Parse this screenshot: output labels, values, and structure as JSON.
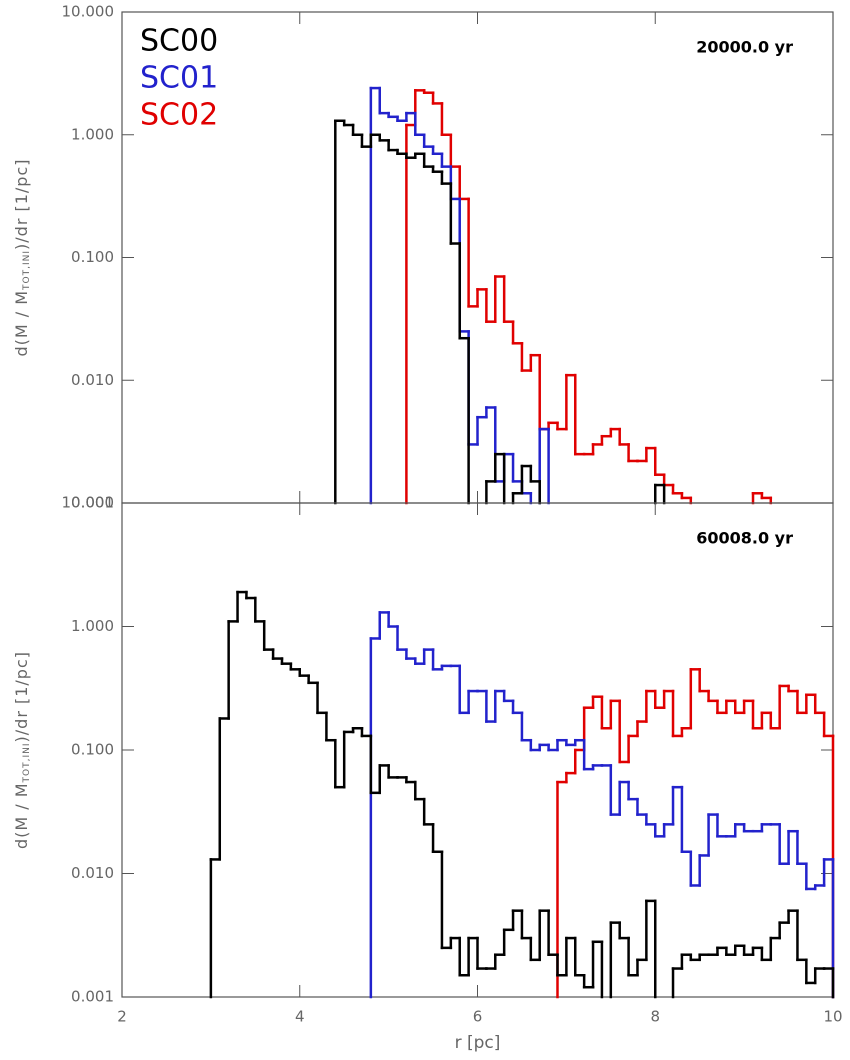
{
  "chart_data": [
    {
      "type": "histogram",
      "log_y": true,
      "legend": "upper left",
      "show_xtick_labels": false,
      "annotation": "20000.0 yr",
      "ylabel": "d(M / M",
      "ylabel_sub": "TOT,INI",
      "ylabel_end": ")/dr [1/pc]",
      "xlim": [
        2,
        10
      ],
      "xticks": [
        2,
        4,
        6,
        8,
        10
      ],
      "ylim": [
        0.001,
        10
      ],
      "yticks": [
        {
          "value": 10,
          "label": "10.000"
        },
        {
          "value": 1,
          "label": "1.000"
        },
        {
          "value": 0.1,
          "label": "0.100"
        },
        {
          "value": 0.01,
          "label": "0.010"
        },
        {
          "value": 0.001,
          "label": "0.001"
        }
      ],
      "series": [
        {
          "name": "SC00",
          "color": "#000000",
          "bins": [
            4.4,
            4.5,
            4.6,
            4.7,
            4.8,
            4.9,
            5.0,
            5.1,
            5.2,
            5.3,
            5.4,
            5.5,
            5.6,
            5.7,
            5.8,
            5.9,
            6.0,
            6.1,
            6.2,
            6.3,
            6.4,
            6.5,
            6.6,
            6.7,
            6.8,
            6.9,
            7.0,
            7.1,
            7.2,
            7.3,
            7.4,
            7.5,
            7.6,
            7.7,
            7.8,
            7.9,
            8.0,
            8.1
          ],
          "values": [
            1.3,
            1.2,
            1.0,
            0.8,
            1.0,
            0.9,
            0.75,
            0.7,
            0.65,
            0.7,
            0.55,
            0.5,
            0.4,
            0.13,
            0.022,
            null,
            null,
            0.0015,
            0.0025,
            null,
            0.0012,
            0.002,
            0.0015,
            null,
            null,
            null,
            null,
            null,
            null,
            null,
            null,
            null,
            null,
            null,
            null,
            null,
            0.0014
          ]
        },
        {
          "name": "SC01",
          "color": "#2222cc",
          "bins": [
            4.8,
            4.9,
            5.0,
            5.1,
            5.2,
            5.3,
            5.4,
            5.5,
            5.6,
            5.7,
            5.8,
            5.9,
            6.0,
            6.1,
            6.2,
            6.3,
            6.4,
            6.5,
            6.6,
            6.7,
            6.8
          ],
          "values": [
            2.4,
            1.5,
            1.4,
            1.3,
            1.5,
            1.0,
            0.8,
            0.7,
            0.55,
            0.3,
            0.025,
            0.003,
            0.005,
            0.006,
            0.0015,
            0.0025,
            0.0015,
            0.0012,
            null,
            0.004
          ]
        },
        {
          "name": "SC02",
          "color": "#e00000",
          "bins": [
            5.2,
            5.3,
            5.4,
            5.5,
            5.6,
            5.7,
            5.8,
            5.9,
            6.0,
            6.1,
            6.2,
            6.3,
            6.4,
            6.5,
            6.6,
            6.7,
            6.8,
            6.9,
            7.0,
            7.1,
            7.2,
            7.3,
            7.4,
            7.5,
            7.6,
            7.7,
            7.8,
            7.9,
            8.0,
            8.1,
            8.2,
            8.3,
            8.4,
            8.5,
            8.6,
            8.7,
            8.8,
            8.9,
            9.0,
            9.1,
            9.2,
            9.3
          ],
          "values": [
            1.2,
            2.3,
            2.2,
            1.8,
            1.0,
            0.55,
            0.3,
            0.04,
            0.055,
            0.03,
            0.07,
            0.03,
            0.02,
            0.012,
            0.016,
            0.004,
            0.0045,
            0.004,
            0.011,
            0.0025,
            0.0025,
            0.003,
            0.0035,
            0.004,
            0.003,
            0.0022,
            0.0022,
            0.0028,
            0.0017,
            0.0014,
            0.0012,
            0.0011,
            null,
            null,
            null,
            null,
            null,
            null,
            null,
            0.0012,
            0.0011
          ]
        }
      ]
    },
    {
      "type": "histogram",
      "log_y": true,
      "legend": false,
      "show_xtick_labels": true,
      "annotation": "60008.0 yr",
      "ylabel": "d(M / M",
      "ylabel_sub": "TOT,INI",
      "ylabel_end": ")/dr [1/pc]",
      "xlabel": "r [pc]",
      "xlim": [
        2,
        10
      ],
      "xticks": [
        2,
        4,
        6,
        8,
        10
      ],
      "ylim": [
        0.001,
        10
      ],
      "yticks": [
        {
          "value": 10,
          "label": "10.000"
        },
        {
          "value": 1,
          "label": "1.000"
        },
        {
          "value": 0.1,
          "label": "0.100"
        },
        {
          "value": 0.01,
          "label": "0.010"
        },
        {
          "value": 0.001,
          "label": "0.001"
        }
      ],
      "series": [
        {
          "color": "#000000",
          "bins": [
            3.0,
            3.1,
            3.2,
            3.3,
            3.4,
            3.5,
            3.6,
            3.7,
            3.8,
            3.9,
            4.0,
            4.1,
            4.2,
            4.3,
            4.4,
            4.5,
            4.6,
            4.7,
            4.8,
            4.9,
            5.0,
            5.1,
            5.2,
            5.3,
            5.4,
            5.5,
            5.6,
            5.7,
            5.8,
            5.9,
            6.0,
            6.1,
            6.2,
            6.3,
            6.4,
            6.5,
            6.6,
            6.7,
            6.8,
            6.9,
            7.0,
            7.1,
            7.2,
            7.3,
            7.4,
            7.5,
            7.6,
            7.7,
            7.8,
            7.9,
            8.0,
            8.1,
            8.2,
            8.3,
            8.4,
            8.5,
            8.6,
            8.7,
            8.8,
            8.9,
            9.0,
            9.1,
            9.2,
            9.3,
            9.4,
            9.5,
            9.6,
            9.7,
            9.8,
            9.9,
            10.0
          ],
          "values": [
            0.013,
            0.18,
            1.1,
            1.9,
            1.7,
            1.1,
            0.65,
            0.55,
            0.5,
            0.45,
            0.4,
            0.35,
            0.2,
            0.12,
            0.05,
            0.14,
            0.15,
            0.13,
            0.045,
            0.075,
            0.06,
            0.06,
            0.055,
            0.04,
            0.025,
            0.015,
            0.0025,
            0.003,
            0.0015,
            0.003,
            0.0017,
            0.0017,
            0.0022,
            0.0035,
            0.005,
            0.003,
            0.002,
            0.005,
            0.0022,
            0.0015,
            0.003,
            0.0015,
            0.0012,
            0.0028,
            null,
            0.004,
            0.003,
            0.0015,
            0.002,
            0.006,
            null,
            null,
            0.0017,
            0.0022,
            0.002,
            0.0022,
            0.0022,
            0.0025,
            0.0022,
            0.0026,
            0.0022,
            0.0025,
            0.002,
            0.003,
            0.004,
            0.005,
            0.002,
            0.0013,
            0.0017,
            0.0017
          ]
        },
        {
          "color": "#2222cc",
          "bins": [
            4.8,
            4.9,
            5.0,
            5.1,
            5.2,
            5.3,
            5.4,
            5.5,
            5.6,
            5.7,
            5.8,
            5.9,
            6.0,
            6.1,
            6.2,
            6.3,
            6.4,
            6.5,
            6.6,
            6.7,
            6.8,
            6.9,
            7.0,
            7.1,
            7.2,
            7.3,
            7.4,
            7.5,
            7.6,
            7.7,
            7.8,
            7.9,
            8.0,
            8.1,
            8.2,
            8.3,
            8.4,
            8.5,
            8.6,
            8.7,
            8.8,
            8.9,
            9.0,
            9.1,
            9.2,
            9.3,
            9.4,
            9.5,
            9.6,
            9.7,
            9.8,
            9.9,
            10.0
          ],
          "values": [
            0.8,
            1.3,
            1.0,
            0.65,
            0.55,
            0.5,
            0.65,
            0.45,
            0.48,
            0.48,
            0.2,
            0.3,
            0.3,
            0.17,
            0.3,
            0.25,
            0.2,
            0.12,
            0.1,
            0.11,
            0.1,
            0.12,
            0.11,
            0.12,
            0.07,
            0.075,
            0.075,
            0.03,
            0.055,
            0.04,
            0.03,
            0.025,
            0.02,
            0.025,
            0.05,
            0.015,
            0.008,
            0.014,
            0.03,
            0.02,
            0.02,
            0.025,
            0.022,
            0.022,
            0.025,
            0.025,
            0.012,
            0.022,
            0.012,
            0.0075,
            0.008,
            0.013
          ]
        },
        {
          "color": "#e00000",
          "bins": [
            6.9,
            7.0,
            7.1,
            7.2,
            7.3,
            7.4,
            7.5,
            7.6,
            7.7,
            7.8,
            7.9,
            8.0,
            8.1,
            8.2,
            8.3,
            8.4,
            8.5,
            8.6,
            8.7,
            8.8,
            8.9,
            9.0,
            9.1,
            9.2,
            9.3,
            9.4,
            9.5,
            9.6,
            9.7,
            9.8,
            9.9,
            10.0
          ],
          "values": [
            0.055,
            0.065,
            0.1,
            0.22,
            0.27,
            0.15,
            0.25,
            0.08,
            0.13,
            0.17,
            0.3,
            0.22,
            0.3,
            0.13,
            0.15,
            0.45,
            0.3,
            0.25,
            0.2,
            0.25,
            0.2,
            0.25,
            0.15,
            0.2,
            0.15,
            0.33,
            0.3,
            0.2,
            0.28,
            0.2,
            0.13
          ]
        }
      ]
    }
  ]
}
